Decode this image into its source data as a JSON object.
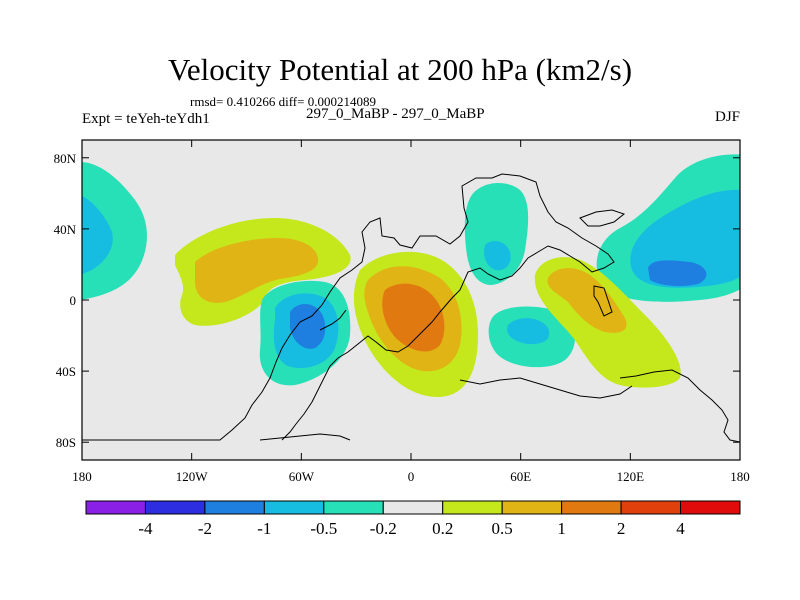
{
  "chart_data": {
    "type": "contour-map",
    "title": "Velocity Potential at 200 hPa (km2/s)",
    "subtitle_stats": "rmsd= 0.410266 diff= 0.000214089",
    "left_label": "Expt = teYeh-teYdh1",
    "center_label": "297_0_MaBP - 297_0_MaBP",
    "right_label": "DJF",
    "x_axis": {
      "range": [
        -180,
        180
      ],
      "ticks": [
        -180,
        -120,
        -60,
        0,
        60,
        120,
        180
      ],
      "tick_labels": [
        "180",
        "120W",
        "60W",
        "0",
        "60E",
        "120E",
        "180"
      ]
    },
    "y_axis": {
      "range": [
        -90,
        90
      ],
      "ticks": [
        80,
        40,
        0,
        -40,
        -80
      ],
      "tick_labels": [
        "80N",
        "40N",
        "0",
        "40S",
        "80S"
      ]
    },
    "levels": [
      -4,
      -2,
      -1,
      -0.5,
      -0.2,
      0.2,
      0.5,
      1,
      2,
      4
    ],
    "colorbar_labels": [
      "-4",
      "-2",
      "-1",
      "-0.5",
      "-0.2",
      "0.2",
      "0.5",
      "1",
      "2",
      "4"
    ],
    "colors": [
      "#8a1fe6",
      "#2c2ee0",
      "#1f7fe0",
      "#16bde0",
      "#28e0b8",
      "#e8e8e8",
      "#c4e81c",
      "#e0b414",
      "#e07a10",
      "#e0400c",
      "#e00c0c"
    ],
    "features": [
      {
        "name": "Pacific positive anomaly",
        "lon": -112,
        "lat": 12,
        "peak": 1
      },
      {
        "name": "South America negative anomaly",
        "lon": -60,
        "lat": -22,
        "peak": -1
      },
      {
        "name": "Atlantic/Africa positive anomaly",
        "lon": 5,
        "lat": -10,
        "peak": 2
      },
      {
        "name": "Middle East negative anomaly",
        "lon": 45,
        "lat": 30,
        "peak": -0.5
      },
      {
        "name": "Indian Ocean negative anomaly",
        "lon": 63,
        "lat": -18,
        "peak": -0.5
      },
      {
        "name": "Indonesia positive anomaly",
        "lon": 98,
        "lat": 0,
        "peak": 1
      },
      {
        "name": "West Pacific negative anomaly",
        "lon": 140,
        "lat": 20,
        "peak": -1
      },
      {
        "name": "East Pacific negative anomaly",
        "lon": -175,
        "lat": 40,
        "peak": -0.5
      }
    ]
  }
}
